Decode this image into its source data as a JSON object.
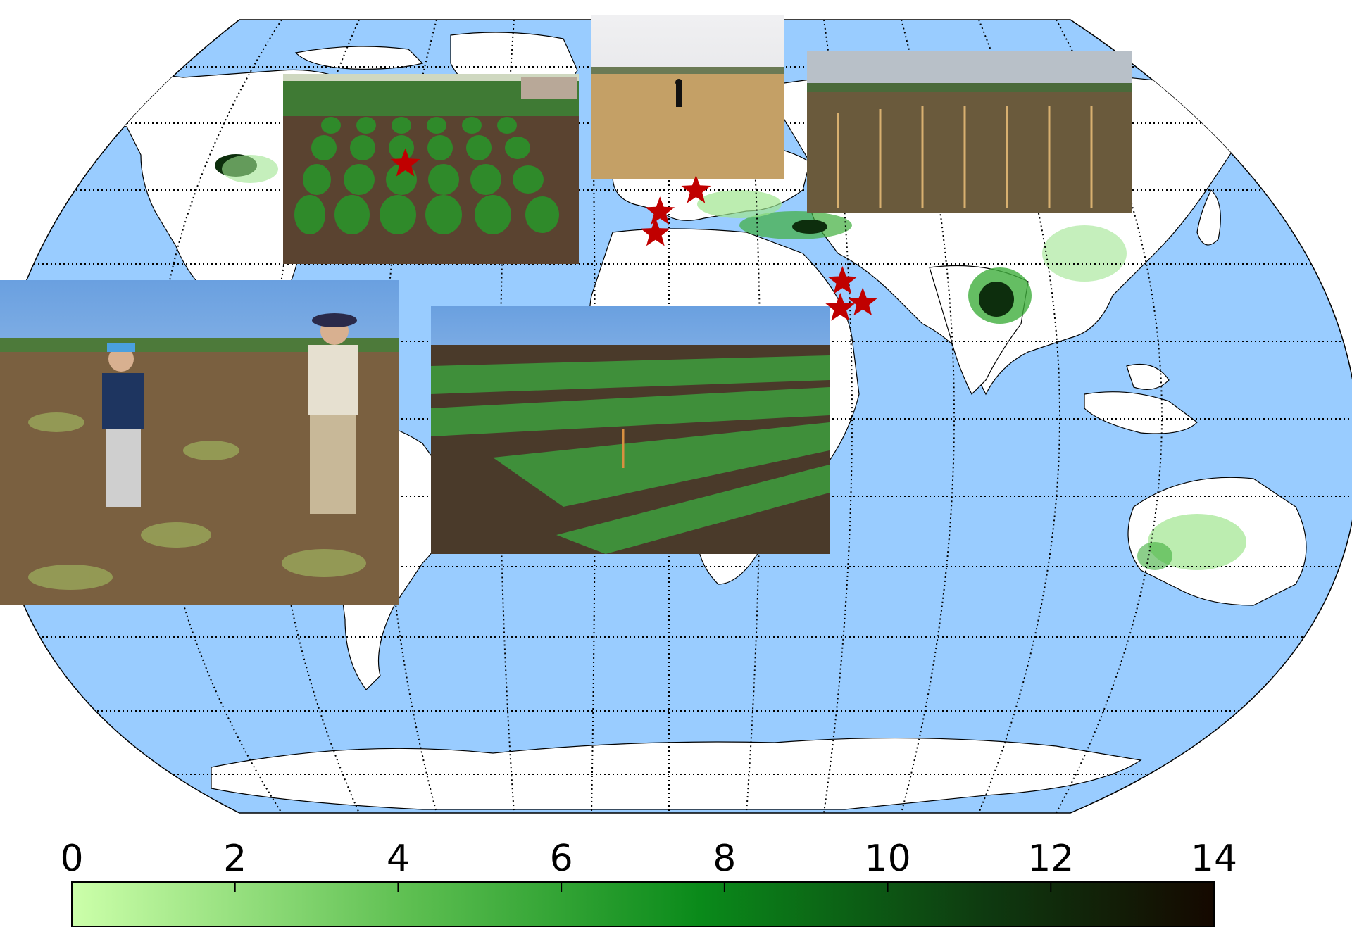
{
  "colorbar": {
    "ticks": [
      0,
      2,
      4,
      6,
      8,
      10,
      12,
      14
    ],
    "min": 0,
    "max": 14,
    "colors": [
      "#ccffaa",
      "#5cbe50",
      "#0a8a1a",
      "#0e3a10",
      "#150800"
    ]
  },
  "colors": {
    "ocean": "#99ccff",
    "land": "#ffffff",
    "coast": "#000000",
    "star": "#c00000",
    "crop_light": "#9fe58f",
    "crop_mid": "#3fae3c",
    "crop_dark": "#0d2e0d"
  },
  "markers": [
    {
      "name": "star-pacific-northwest",
      "lon": -117,
      "lat": 47
    },
    {
      "name": "star-spain",
      "lon": -4,
      "lat": 38
    },
    {
      "name": "star-morocco",
      "lon": -6,
      "lat": 34
    },
    {
      "name": "star-italy",
      "lon": 12,
      "lat": 42
    },
    {
      "name": "star-india-north",
      "lon": 77,
      "lat": 25
    },
    {
      "name": "star-india-central",
      "lon": 76,
      "lat": 20
    },
    {
      "name": "star-india-east",
      "lon": 86,
      "lat": 21
    }
  ],
  "photos": [
    {
      "name": "photo-bushy-crop-rows",
      "scene": "rows"
    },
    {
      "name": "photo-dry-field-person",
      "scene": "dry"
    },
    {
      "name": "photo-staked-field",
      "scene": "staked"
    },
    {
      "name": "photo-researchers-field",
      "scene": "people"
    },
    {
      "name": "photo-green-plots",
      "scene": "plots"
    }
  ]
}
